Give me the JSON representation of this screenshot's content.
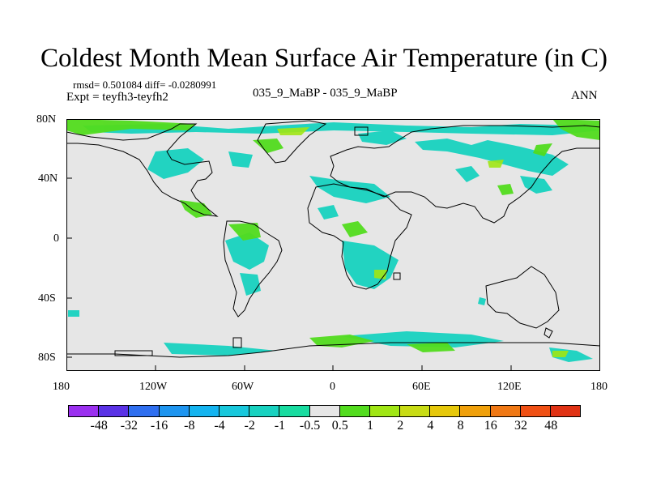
{
  "title": "Coldest Month Mean Surface Air Temperature (in C)",
  "stats": "rmsd= 0.501084  diff= -0.0280991",
  "experiment": "Expt = teyfh3-teyfh2",
  "subtitle": "035_9_MaBP - 035_9_MaBP",
  "season": "ANN",
  "x_ticks": [
    "180",
    "120W",
    "60W",
    "0",
    "60E",
    "120E",
    "180"
  ],
  "y_ticks": [
    "80N",
    "40N",
    "0",
    "40S",
    "80S"
  ],
  "colorbar": {
    "labels": [
      "-48",
      "-32",
      "-16",
      "-8",
      "-4",
      "-2",
      "-1",
      "-0.5",
      "0.5",
      "1",
      "2",
      "4",
      "8",
      "16",
      "32",
      "48"
    ],
    "colors": [
      "#9b30f0",
      "#5a32e6",
      "#2f6ff0",
      "#1e95f0",
      "#14b4f0",
      "#18c8dc",
      "#18d2c0",
      "#18dca0",
      "#e6e6e6",
      "#52dc1e",
      "#a0e614",
      "#c8dc14",
      "#e6c80a",
      "#f0a00a",
      "#f07814",
      "#f05014",
      "#e03214"
    ]
  },
  "map_colors": {
    "background": "#e6e6e6",
    "coast": "#000000",
    "cool": "#18d2c0",
    "cool_dark": "#14b4f0",
    "warm": "#52dc1e",
    "warm_light": "#a0e614"
  }
}
